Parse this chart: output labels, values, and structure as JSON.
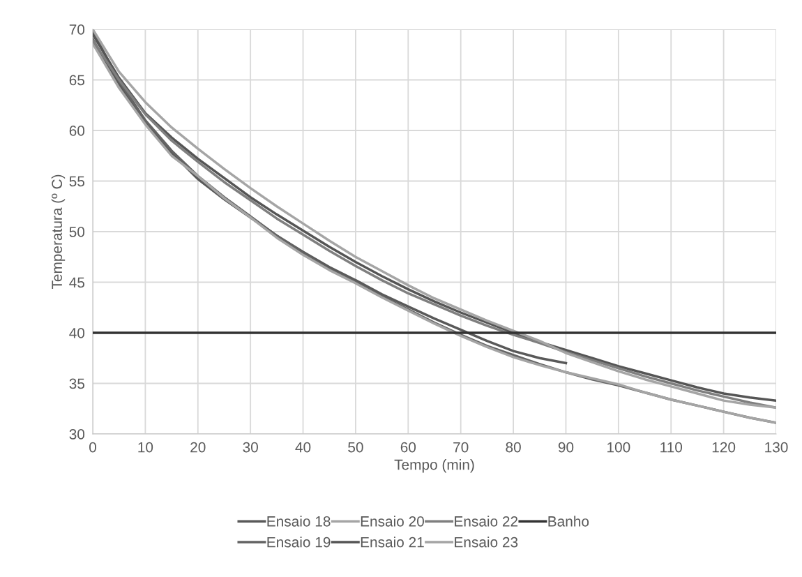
{
  "chart_data": {
    "type": "line",
    "xlabel": "Tempo (min)",
    "ylabel": "Temperatura (º C)",
    "xlim": [
      0,
      130
    ],
    "ylim": [
      30,
      70
    ],
    "xticks": [
      0,
      10,
      20,
      30,
      40,
      50,
      60,
      70,
      80,
      90,
      100,
      110,
      120,
      130
    ],
    "yticks": [
      30,
      35,
      40,
      45,
      50,
      55,
      60,
      65,
      70
    ],
    "grid": true,
    "legend": "bottom",
    "marker": "none",
    "line_style": "solid",
    "x": [
      0,
      5,
      10,
      15,
      20,
      25,
      30,
      35,
      40,
      45,
      50,
      55,
      60,
      65,
      70,
      75,
      80,
      85,
      90,
      95,
      100,
      105,
      110,
      115,
      120,
      125,
      130
    ],
    "series": [
      {
        "name": "Ensaio 18",
        "color": "#595959",
        "x": [
          0,
          5,
          10,
          15,
          20,
          25,
          30,
          35,
          40,
          45,
          50,
          55,
          60,
          65,
          70,
          75,
          80,
          85,
          90
        ],
        "values": [
          69.0,
          64.6,
          60.8,
          57.8,
          55.2,
          53.2,
          51.4,
          49.6,
          48.0,
          46.5,
          45.2,
          43.8,
          42.6,
          41.4,
          40.3,
          39.2,
          38.2,
          37.5,
          37.0
        ]
      },
      {
        "name": "Ensaio 19",
        "color": "#636363",
        "values": [
          69.8,
          64.9,
          61.0,
          58.0,
          55.5,
          53.4,
          51.5,
          49.6,
          47.9,
          46.3,
          45.0,
          43.6,
          42.3,
          41.0,
          39.8,
          38.7,
          37.8,
          36.9,
          36.1,
          35.4,
          34.8,
          34.1,
          33.4,
          32.8,
          32.2,
          31.6,
          31.1
        ]
      },
      {
        "name": "Ensaio 20",
        "color": "#a5a5a5",
        "values": [
          68.6,
          64.2,
          60.6,
          57.5,
          55.5,
          53.3,
          51.4,
          49.4,
          47.7,
          46.2,
          44.9,
          43.5,
          42.2,
          40.9,
          39.7,
          38.6,
          37.6,
          36.8,
          36.1,
          35.5,
          34.9,
          34.1,
          33.4,
          32.8,
          32.2,
          31.6,
          31.1
        ]
      },
      {
        "name": "Ensaio 21",
        "color": "#555555",
        "values": [
          69.5,
          65.2,
          61.7,
          59.3,
          57.2,
          55.3,
          53.4,
          51.7,
          50.1,
          48.5,
          47.0,
          45.6,
          44.3,
          43.1,
          42.0,
          41.0,
          40.0,
          39.1,
          38.3,
          37.5,
          36.7,
          36.0,
          35.3,
          34.6,
          34.0,
          33.6,
          33.3
        ]
      },
      {
        "name": "Ensaio 22",
        "color": "#7f7f7f",
        "values": [
          68.9,
          65.0,
          61.6,
          59.0,
          56.9,
          54.9,
          53.1,
          51.3,
          49.7,
          48.1,
          46.6,
          45.2,
          43.9,
          42.8,
          41.7,
          40.7,
          39.8,
          39.0,
          38.1,
          37.3,
          36.5,
          35.7,
          35.0,
          34.3,
          33.7,
          33.1,
          32.6
        ]
      },
      {
        "name": "Ensaio 23",
        "color": "#a5a5a5",
        "values": [
          70.0,
          65.8,
          62.8,
          60.3,
          58.2,
          56.2,
          54.3,
          52.5,
          50.8,
          49.1,
          47.5,
          46.1,
          44.7,
          43.4,
          42.3,
          41.2,
          40.2,
          39.2,
          38.0,
          37.1,
          36.2,
          35.4,
          34.7,
          34.0,
          33.3,
          32.9,
          32.6
        ]
      },
      {
        "name": "Banho",
        "color": "#333333",
        "x": [
          0,
          130
        ],
        "values": [
          40,
          40
        ]
      }
    ]
  }
}
